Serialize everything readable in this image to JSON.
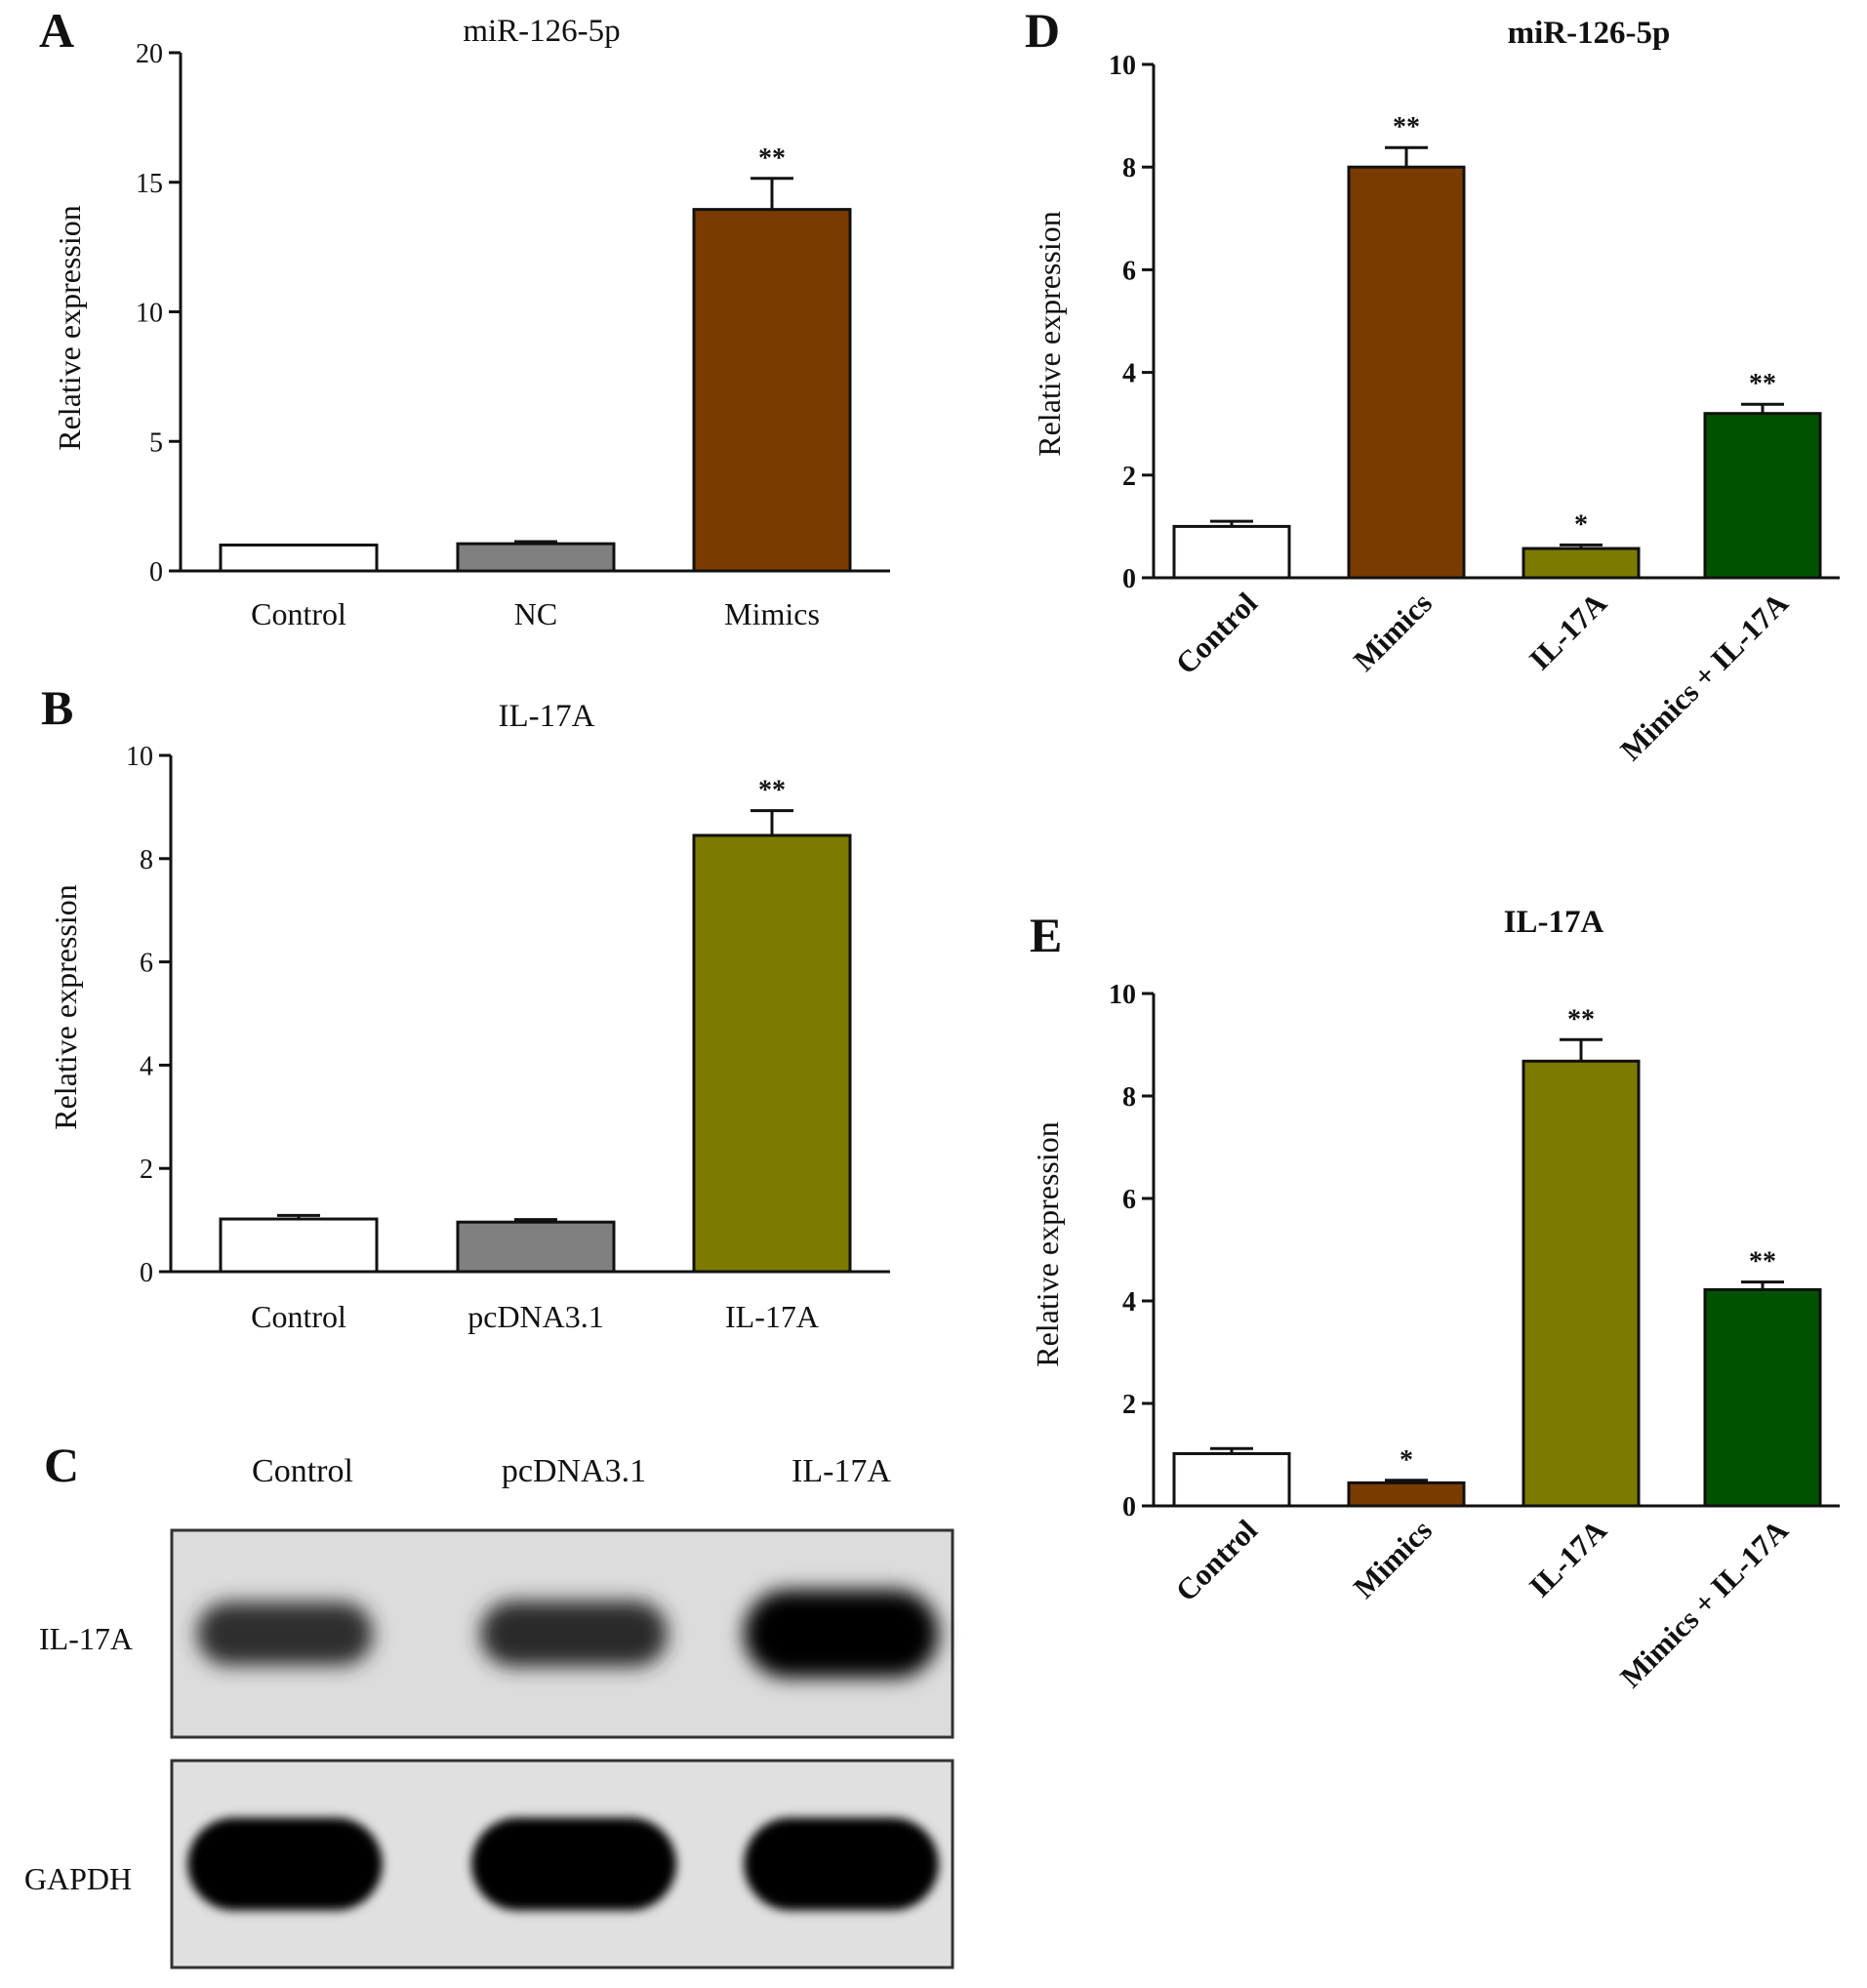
{
  "colors": {
    "white": "#ffffff",
    "gray": "#808080",
    "brown": "#7a3b00",
    "olive": "#7d7a00",
    "green": "#005200"
  },
  "chart_data": [
    {
      "id": "A",
      "type": "bar",
      "panel_label": "A",
      "title": "miR-126-5p",
      "ylabel": "Relative expression",
      "xlabel": "",
      "ylim": [
        0,
        20
      ],
      "yticks": [
        0,
        5,
        10,
        15,
        20
      ],
      "categories": [
        "Control",
        "NC",
        "Mimics"
      ],
      "values": [
        1.0,
        1.05,
        13.95
      ],
      "errors": [
        0.0,
        0.08,
        1.2
      ],
      "significance": [
        "",
        "",
        "**"
      ],
      "bar_colors": [
        "white",
        "gray",
        "brown"
      ],
      "grid": false
    },
    {
      "id": "B",
      "type": "bar",
      "panel_label": "B",
      "title": "IL-17A",
      "ylabel": "Relative expression",
      "xlabel": "",
      "ylim": [
        0,
        10
      ],
      "yticks": [
        0,
        2,
        4,
        6,
        8,
        10
      ],
      "categories": [
        "Control",
        "pcDNA3.1",
        "IL-17A"
      ],
      "values": [
        1.02,
        0.96,
        8.45
      ],
      "errors": [
        0.07,
        0.05,
        0.48
      ],
      "significance": [
        "",
        "",
        "**"
      ],
      "bar_colors": [
        "white",
        "gray",
        "olive"
      ],
      "grid": false
    },
    {
      "id": "D",
      "type": "bar",
      "panel_label": "D",
      "title": "miR-126-5p",
      "ylabel": "Relative expression",
      "xlabel": "",
      "ylim": [
        0,
        10
      ],
      "yticks": [
        0,
        2,
        4,
        6,
        8,
        10
      ],
      "categories": [
        "Control",
        "Mimics",
        "IL-17A",
        "Mimics + IL-17A"
      ],
      "values": [
        1.0,
        8.0,
        0.57,
        3.2
      ],
      "errors": [
        0.1,
        0.38,
        0.07,
        0.18
      ],
      "significance": [
        "",
        "**",
        "*",
        "**"
      ],
      "bar_colors": [
        "white",
        "brown",
        "olive",
        "green"
      ],
      "grid": false
    },
    {
      "id": "E",
      "type": "bar",
      "panel_label": "E",
      "title": "IL-17A",
      "ylabel": "Relative expression",
      "xlabel": "",
      "ylim": [
        0,
        10
      ],
      "yticks": [
        0,
        2,
        4,
        6,
        8,
        10
      ],
      "categories": [
        "Control",
        "Mimics",
        "IL-17A",
        "Mimics + IL-17A"
      ],
      "values": [
        1.02,
        0.45,
        8.68,
        4.22
      ],
      "errors": [
        0.1,
        0.05,
        0.42,
        0.15
      ],
      "significance": [
        "",
        "*",
        "**",
        "**"
      ],
      "bar_colors": [
        "white",
        "brown",
        "olive",
        "green"
      ],
      "grid": false
    }
  ],
  "western_blot": {
    "panel_label": "C",
    "lanes": [
      "Control",
      "pcDNA3.1",
      "IL-17A"
    ],
    "rows": [
      {
        "label": "IL-17A",
        "intensity": [
          0.5,
          0.55,
          1.0
        ]
      },
      {
        "label": "GAPDH",
        "intensity": [
          1.0,
          1.0,
          1.0
        ]
      }
    ]
  }
}
